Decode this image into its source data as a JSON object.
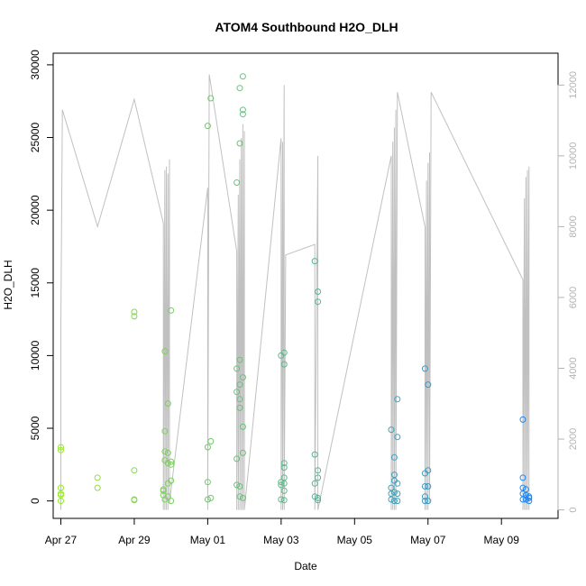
{
  "chart_data": {
    "type": "scatter",
    "title": "ATOM4 Southbound H2O_DLH",
    "xlabel": "Date",
    "ylabel": "H2O_DLH",
    "x_range": [
      "2016-04-26T19:00",
      "2016-05-10T13:00"
    ],
    "ylim": [
      -1200,
      30800
    ],
    "y_ticks": [
      0,
      5000,
      10000,
      15000,
      20000,
      25000,
      30000
    ],
    "x_ticks": [
      {
        "label": "Apr 27",
        "date": "2016-04-27"
      },
      {
        "label": "Apr 29",
        "date": "2016-04-29"
      },
      {
        "label": "May 01",
        "date": "2016-05-01"
      },
      {
        "label": "May 03",
        "date": "2016-05-03"
      },
      {
        "label": "May 05",
        "date": "2016-05-05"
      },
      {
        "label": "May 07",
        "date": "2016-05-07"
      },
      {
        "label": "May 09",
        "date": "2016-05-09"
      }
    ],
    "secondary_axis": {
      "side": "right",
      "ylim": [
        -240,
        12900
      ],
      "ticks": [
        0,
        2000,
        4000,
        6000,
        8000,
        10000,
        12000
      ],
      "line_color": "#c0c0c0"
    },
    "grid": false,
    "legend": "none",
    "point_color_gradient": [
      "#99e632",
      "#1f86f0"
    ],
    "points": [
      {
        "x": "2016-04-27T00:00",
        "y": 3700
      },
      {
        "x": "2016-04-27T00:00",
        "y": 3500
      },
      {
        "x": "2016-04-27T00:00",
        "y": 900
      },
      {
        "x": "2016-04-27T00:00",
        "y": 500
      },
      {
        "x": "2016-04-27T00:00",
        "y": 400
      },
      {
        "x": "2016-04-27T00:00",
        "y": 0
      },
      {
        "x": "2016-04-28T00:00",
        "y": 1600
      },
      {
        "x": "2016-04-28T00:00",
        "y": 900
      },
      {
        "x": "2016-04-29T00:00",
        "y": 13000
      },
      {
        "x": "2016-04-29T00:00",
        "y": 12700
      },
      {
        "x": "2016-04-29T00:00",
        "y": 2100
      },
      {
        "x": "2016-04-29T00:00",
        "y": 100
      },
      {
        "x": "2016-04-29T00:00",
        "y": 50
      },
      {
        "x": "2016-04-29T19:00",
        "y": 800
      },
      {
        "x": "2016-04-29T19:00",
        "y": 700
      },
      {
        "x": "2016-04-29T19:00",
        "y": 400
      },
      {
        "x": "2016-04-29T20:00",
        "y": 10300
      },
      {
        "x": "2016-04-29T20:00",
        "y": 4800
      },
      {
        "x": "2016-04-29T20:00",
        "y": 3400
      },
      {
        "x": "2016-04-29T20:00",
        "y": 2800
      },
      {
        "x": "2016-04-29T20:00",
        "y": 100
      },
      {
        "x": "2016-04-29T22:00",
        "y": 6700
      },
      {
        "x": "2016-04-29T22:00",
        "y": 3300
      },
      {
        "x": "2016-04-29T22:00",
        "y": 2600
      },
      {
        "x": "2016-04-29T22:00",
        "y": 1200
      },
      {
        "x": "2016-04-29T22:00",
        "y": 300
      },
      {
        "x": "2016-04-30T00:00",
        "y": 13100
      },
      {
        "x": "2016-04-30T00:00",
        "y": 2700
      },
      {
        "x": "2016-04-30T00:00",
        "y": 2500
      },
      {
        "x": "2016-04-30T00:00",
        "y": 1400
      },
      {
        "x": "2016-04-30T00:00",
        "y": 0
      },
      {
        "x": "2016-05-01T00:00",
        "y": 25800
      },
      {
        "x": "2016-05-01T00:00",
        "y": 3700
      },
      {
        "x": "2016-05-01T00:00",
        "y": 1300
      },
      {
        "x": "2016-05-01T00:00",
        "y": 100
      },
      {
        "x": "2016-05-01T02:00",
        "y": 27700
      },
      {
        "x": "2016-05-01T02:00",
        "y": 4100
      },
      {
        "x": "2016-05-01T02:00",
        "y": 200
      },
      {
        "x": "2016-05-01T19:00",
        "y": 21900
      },
      {
        "x": "2016-05-01T19:00",
        "y": 9100
      },
      {
        "x": "2016-05-01T19:00",
        "y": 7500
      },
      {
        "x": "2016-05-01T19:00",
        "y": 2900
      },
      {
        "x": "2016-05-01T19:00",
        "y": 1100
      },
      {
        "x": "2016-05-01T21:00",
        "y": 28400
      },
      {
        "x": "2016-05-01T21:00",
        "y": 24600
      },
      {
        "x": "2016-05-01T21:00",
        "y": 9700
      },
      {
        "x": "2016-05-01T21:00",
        "y": 8000
      },
      {
        "x": "2016-05-01T21:00",
        "y": 7000
      },
      {
        "x": "2016-05-01T21:00",
        "y": 6400
      },
      {
        "x": "2016-05-01T21:00",
        "y": 1000
      },
      {
        "x": "2016-05-01T21:00",
        "y": 300
      },
      {
        "x": "2016-05-01T23:00",
        "y": 29200
      },
      {
        "x": "2016-05-01T23:00",
        "y": 26900
      },
      {
        "x": "2016-05-01T23:00",
        "y": 26600
      },
      {
        "x": "2016-05-01T23:00",
        "y": 8500
      },
      {
        "x": "2016-05-01T23:00",
        "y": 5100
      },
      {
        "x": "2016-05-01T23:00",
        "y": 3300
      },
      {
        "x": "2016-05-01T23:00",
        "y": 200
      },
      {
        "x": "2016-05-03T00:00",
        "y": 10000
      },
      {
        "x": "2016-05-03T00:00",
        "y": 1300
      },
      {
        "x": "2016-05-03T00:00",
        "y": 1100
      },
      {
        "x": "2016-05-03T00:00",
        "y": 100
      },
      {
        "x": "2016-05-03T02:00",
        "y": 10200
      },
      {
        "x": "2016-05-03T02:00",
        "y": 9400
      },
      {
        "x": "2016-05-03T02:00",
        "y": 2600
      },
      {
        "x": "2016-05-03T02:00",
        "y": 2300
      },
      {
        "x": "2016-05-03T02:00",
        "y": 1600
      },
      {
        "x": "2016-05-03T02:00",
        "y": 1200
      },
      {
        "x": "2016-05-03T02:00",
        "y": 700
      },
      {
        "x": "2016-05-03T02:00",
        "y": 50
      },
      {
        "x": "2016-05-03T22:00",
        "y": 16500
      },
      {
        "x": "2016-05-03T22:00",
        "y": 3200
      },
      {
        "x": "2016-05-03T22:00",
        "y": 1200
      },
      {
        "x": "2016-05-03T22:00",
        "y": 300
      },
      {
        "x": "2016-05-04T00:00",
        "y": 14400
      },
      {
        "x": "2016-05-04T00:00",
        "y": 13700
      },
      {
        "x": "2016-05-04T00:00",
        "y": 2100
      },
      {
        "x": "2016-05-04T00:00",
        "y": 1600
      },
      {
        "x": "2016-05-04T00:00",
        "y": 200
      },
      {
        "x": "2016-05-04T00:00",
        "y": 50
      },
      {
        "x": "2016-05-06T00:00",
        "y": 4900
      },
      {
        "x": "2016-05-06T00:00",
        "y": 900
      },
      {
        "x": "2016-05-06T00:00",
        "y": 500
      },
      {
        "x": "2016-05-06T00:00",
        "y": 100
      },
      {
        "x": "2016-05-06T02:00",
        "y": 3000
      },
      {
        "x": "2016-05-06T02:00",
        "y": 1800
      },
      {
        "x": "2016-05-06T02:00",
        "y": 1400
      },
      {
        "x": "2016-05-06T02:00",
        "y": 600
      },
      {
        "x": "2016-05-06T02:00",
        "y": 0
      },
      {
        "x": "2016-05-06T04:00",
        "y": 7000
      },
      {
        "x": "2016-05-06T04:00",
        "y": 4400
      },
      {
        "x": "2016-05-06T04:00",
        "y": 1200
      },
      {
        "x": "2016-05-06T04:00",
        "y": 500
      },
      {
        "x": "2016-05-06T04:00",
        "y": 0
      },
      {
        "x": "2016-05-06T22:00",
        "y": 9100
      },
      {
        "x": "2016-05-06T22:00",
        "y": 1900
      },
      {
        "x": "2016-05-06T22:00",
        "y": 1000
      },
      {
        "x": "2016-05-06T22:00",
        "y": 300
      },
      {
        "x": "2016-05-06T22:00",
        "y": 0
      },
      {
        "x": "2016-05-07T00:00",
        "y": 8000
      },
      {
        "x": "2016-05-07T00:00",
        "y": 2100
      },
      {
        "x": "2016-05-07T00:00",
        "y": 1000
      },
      {
        "x": "2016-05-07T00:00",
        "y": 0
      },
      {
        "x": "2016-05-09T14:00",
        "y": 5600
      },
      {
        "x": "2016-05-09T14:00",
        "y": 1600
      },
      {
        "x": "2016-05-09T14:00",
        "y": 900
      },
      {
        "x": "2016-05-09T14:00",
        "y": 500
      },
      {
        "x": "2016-05-09T14:00",
        "y": 100
      },
      {
        "x": "2016-05-09T16:00",
        "y": 800
      },
      {
        "x": "2016-05-09T16:00",
        "y": 400
      },
      {
        "x": "2016-05-09T16:00",
        "y": 100
      },
      {
        "x": "2016-05-09T18:00",
        "y": 300
      },
      {
        "x": "2016-05-09T18:00",
        "y": 200
      },
      {
        "x": "2016-05-09T18:00",
        "y": 0
      }
    ],
    "secondary_series": {
      "name": "",
      "points": [
        {
          "x": "2016-04-27T00:00",
          "y": 0
        },
        {
          "x": "2016-04-27T00:00",
          "y": 5200
        },
        {
          "x": "2016-04-27T01:00",
          "y": 11300
        },
        {
          "x": "2016-04-28T00:00",
          "y": 8000
        },
        {
          "x": "2016-04-29T00:00",
          "y": 11600
        },
        {
          "x": "2016-04-29T19:00",
          "y": 8100
        },
        {
          "x": "2016-04-29T19:00",
          "y": 0
        },
        {
          "x": "2016-04-29T20:00",
          "y": 9600
        },
        {
          "x": "2016-04-29T20:00",
          "y": 0
        },
        {
          "x": "2016-04-29T21:00",
          "y": 9700
        },
        {
          "x": "2016-04-29T21:00",
          "y": 0
        },
        {
          "x": "2016-04-29T22:00",
          "y": 9500
        },
        {
          "x": "2016-04-29T22:00",
          "y": 0
        },
        {
          "x": "2016-04-29T23:00",
          "y": 9900
        },
        {
          "x": "2016-04-29T23:00",
          "y": 200
        },
        {
          "x": "2016-05-01T00:00",
          "y": 9100
        },
        {
          "x": "2016-05-01T00:00",
          "y": 0
        },
        {
          "x": "2016-05-01T01:00",
          "y": 12300
        },
        {
          "x": "2016-05-01T19:00",
          "y": 7300
        },
        {
          "x": "2016-05-01T19:00",
          "y": 0
        },
        {
          "x": "2016-05-01T20:00",
          "y": 8900
        },
        {
          "x": "2016-05-01T20:00",
          "y": 0
        },
        {
          "x": "2016-05-01T21:00",
          "y": 9900
        },
        {
          "x": "2016-05-01T21:00",
          "y": 0
        },
        {
          "x": "2016-05-01T22:00",
          "y": 10500
        },
        {
          "x": "2016-05-01T22:00",
          "y": 0
        },
        {
          "x": "2016-05-01T23:00",
          "y": 10900
        },
        {
          "x": "2016-05-01T23:00",
          "y": 0
        },
        {
          "x": "2016-05-02T00:00",
          "y": 10700
        },
        {
          "x": "2016-05-02T00:00",
          "y": 0
        },
        {
          "x": "2016-05-03T00:00",
          "y": 10500
        },
        {
          "x": "2016-05-03T00:00",
          "y": 0
        },
        {
          "x": "2016-05-03T01:00",
          "y": 10400
        },
        {
          "x": "2016-05-03T01:00",
          "y": 0
        },
        {
          "x": "2016-05-03T02:00",
          "y": 12000
        },
        {
          "x": "2016-05-03T02:00",
          "y": 0
        },
        {
          "x": "2016-05-03T03:00",
          "y": 7200
        },
        {
          "x": "2016-05-03T22:00",
          "y": 7500
        },
        {
          "x": "2016-05-03T22:00",
          "y": 0
        },
        {
          "x": "2016-05-04T00:00",
          "y": 10000
        },
        {
          "x": "2016-05-04T00:00",
          "y": 0
        },
        {
          "x": "2016-05-06T00:00",
          "y": 10000
        },
        {
          "x": "2016-05-06T00:00",
          "y": 0
        },
        {
          "x": "2016-05-06T01:00",
          "y": 10400
        },
        {
          "x": "2016-05-06T01:00",
          "y": 0
        },
        {
          "x": "2016-05-06T02:00",
          "y": 10800
        },
        {
          "x": "2016-05-06T02:00",
          "y": 0
        },
        {
          "x": "2016-05-06T03:00",
          "y": 11300
        },
        {
          "x": "2016-05-06T03:00",
          "y": 0
        },
        {
          "x": "2016-05-06T04:00",
          "y": 11800
        },
        {
          "x": "2016-05-06T22:00",
          "y": 8000
        },
        {
          "x": "2016-05-06T22:00",
          "y": 0
        },
        {
          "x": "2016-05-06T23:00",
          "y": 9300
        },
        {
          "x": "2016-05-06T23:00",
          "y": 0
        },
        {
          "x": "2016-05-07T00:00",
          "y": 9800
        },
        {
          "x": "2016-05-07T00:00",
          "y": 0
        },
        {
          "x": "2016-05-07T01:00",
          "y": 10100
        },
        {
          "x": "2016-05-07T01:00",
          "y": 200
        },
        {
          "x": "2016-05-07T02:00",
          "y": 11800
        },
        {
          "x": "2016-05-09T14:00",
          "y": 6500
        },
        {
          "x": "2016-05-09T14:00",
          "y": 0
        },
        {
          "x": "2016-05-09T15:00",
          "y": 8800
        },
        {
          "x": "2016-05-09T15:00",
          "y": 0
        },
        {
          "x": "2016-05-09T16:00",
          "y": 9400
        },
        {
          "x": "2016-05-09T16:00",
          "y": 0
        },
        {
          "x": "2016-05-09T17:00",
          "y": 9600
        },
        {
          "x": "2016-05-09T17:00",
          "y": 0
        },
        {
          "x": "2016-05-09T18:00",
          "y": 9700
        },
        {
          "x": "2016-05-09T18:00",
          "y": 0
        }
      ]
    }
  }
}
